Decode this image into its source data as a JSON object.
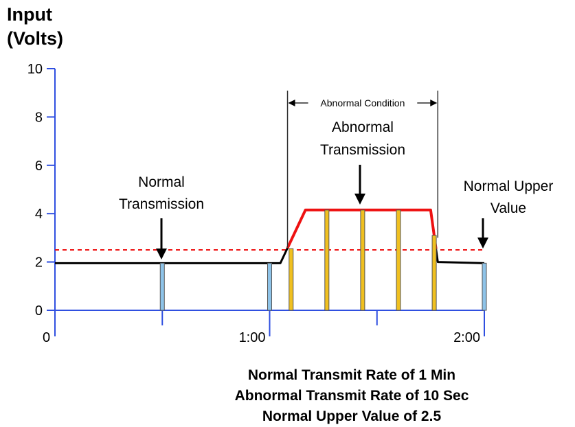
{
  "chart_data": {
    "type": "line",
    "ylabel": [
      "Input",
      "(Volts)"
    ],
    "ylim": [
      0,
      10
    ],
    "y_ticks": [
      0,
      2,
      4,
      6,
      8,
      10
    ],
    "xlim": [
      0,
      120
    ],
    "x_ticks": [
      {
        "value": 0,
        "label": "0"
      },
      {
        "value": 60,
        "label": "1:00"
      },
      {
        "value": 120,
        "label": "2:00"
      }
    ],
    "x_minor_ticks": [
      30,
      90
    ],
    "series": [
      {
        "color": "#000000",
        "points": [
          [
            0,
            1.95
          ],
          [
            63,
            1.95
          ],
          [
            70,
            4.15
          ],
          [
            105,
            4.15
          ],
          [
            107,
            2.0
          ],
          [
            120,
            1.95
          ]
        ]
      }
    ],
    "abnormal_segment": {
      "color": "#ee1111",
      "start": 65,
      "end": 106.5
    },
    "threshold": {
      "value": 2.5,
      "color": "#ee1111",
      "style": "dashed"
    },
    "transmissions_normal": {
      "color": "#8ec3e8",
      "x": [
        30,
        60,
        120
      ],
      "height": [
        1.95,
        1.95,
        1.95
      ]
    },
    "transmissions_abnormal": {
      "color": "#f0c020",
      "x": [
        66,
        76,
        86,
        96,
        106
      ],
      "height": [
        2.55,
        4.15,
        4.15,
        4.15,
        3.1
      ]
    },
    "bracket": {
      "start": 65,
      "end": 107,
      "label": "Abnormal Condition"
    },
    "annotations": [
      {
        "lines": [
          "Normal",
          "Transmission"
        ],
        "x": 30
      },
      {
        "lines": [
          "Abnormal",
          "Transmission"
        ],
        "x": 86
      },
      {
        "lines": [
          "Normal Upper",
          "Value"
        ],
        "x": 120
      }
    ],
    "caption": [
      "Normal Transmit Rate of 1 Min",
      "Abnormal Transmit Rate of 10 Sec",
      "Normal Upper Value of 2.5"
    ]
  }
}
